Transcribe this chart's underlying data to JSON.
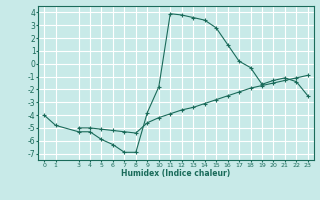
{
  "xlabel": "Humidex (Indice chaleur)",
  "ylabel": "",
  "bg_color": "#c8eae8",
  "line_color": "#1a6b5a",
  "grid_color": "#ffffff",
  "ylim": [
    -7.5,
    4.5
  ],
  "xlim": [
    -0.5,
    23.5
  ],
  "x_ticks": [
    0,
    1,
    3,
    4,
    5,
    6,
    7,
    8,
    9,
    10,
    11,
    12,
    13,
    14,
    15,
    16,
    17,
    18,
    19,
    20,
    21,
    22,
    23
  ],
  "y_ticks": [
    -7,
    -6,
    -5,
    -4,
    -3,
    -2,
    -1,
    0,
    1,
    2,
    3,
    4
  ],
  "curve1_x": [
    0,
    1,
    3,
    4,
    5,
    6,
    7,
    8,
    9,
    10,
    11,
    12,
    13,
    14,
    15,
    16,
    17,
    18,
    19,
    20,
    21,
    22,
    23
  ],
  "curve1_y": [
    -4.0,
    -4.8,
    -5.3,
    -5.3,
    -5.9,
    -6.3,
    -6.9,
    -6.9,
    -3.8,
    -1.8,
    3.9,
    3.8,
    3.6,
    3.4,
    2.8,
    1.5,
    0.2,
    -0.3,
    -1.6,
    -1.3,
    -1.1,
    -1.4,
    -2.5
  ],
  "curve2_x": [
    3,
    4,
    5,
    6,
    7,
    8,
    9,
    10,
    11,
    12,
    13,
    14,
    15,
    16,
    17,
    18,
    19,
    20,
    21,
    22,
    23
  ],
  "curve2_y": [
    -5.0,
    -5.0,
    -5.1,
    -5.2,
    -5.3,
    -5.4,
    -4.6,
    -4.2,
    -3.9,
    -3.6,
    -3.4,
    -3.1,
    -2.8,
    -2.5,
    -2.2,
    -1.9,
    -1.7,
    -1.5,
    -1.3,
    -1.1,
    -0.9
  ]
}
